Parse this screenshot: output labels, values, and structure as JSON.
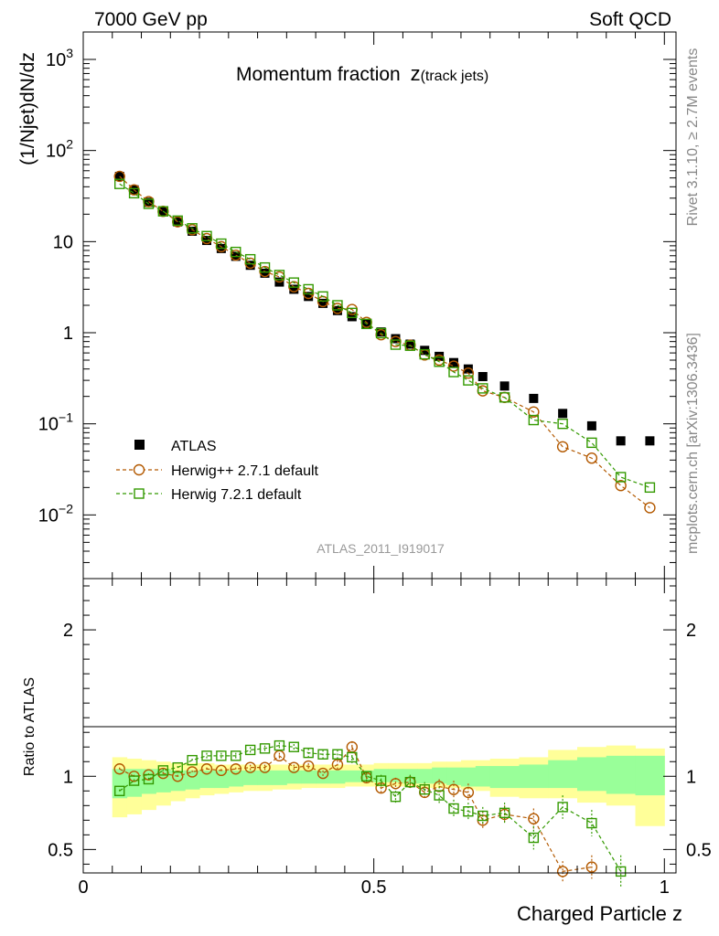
{
  "header": {
    "left": "7000 GeV pp",
    "right": "Soft QCD"
  },
  "side_labels": {
    "rivet": "Rivet 3.1.10, ≥ 2.7M events",
    "source": "mcplots.cern.ch [arXiv:1306.3436]"
  },
  "analysis_tag": "ATLAS_2011_I919017",
  "colors": {
    "atlas": "#000000",
    "herwigpp": "#b35900",
    "herwig7": "#339900",
    "band_inner": "#99ff99",
    "band_outer": "#ffff99"
  },
  "chart_data": [
    {
      "type": "scatter",
      "title_main": "Momentum fraction",
      "title_var": "z",
      "title_sub": "(track jets)",
      "ylabel": "(1/Njet)dN/dz",
      "xlim": [
        0,
        1.02
      ],
      "ylim": [
        0.002,
        2000
      ],
      "yscale": "log",
      "yticks": [
        {
          "value": 1000,
          "base": "10",
          "exp": "3"
        },
        {
          "value": 100,
          "base": "10",
          "exp": "2"
        },
        {
          "value": 10,
          "base": "10",
          "exp": ""
        },
        {
          "value": 1,
          "base": "1",
          "exp": ""
        },
        {
          "value": 0.1,
          "base": "10",
          "exp": "−1"
        },
        {
          "value": 0.01,
          "base": "10",
          "exp": "−2"
        }
      ],
      "legend_position": "bottom-left",
      "x": [
        0.0625,
        0.0875,
        0.1125,
        0.1375,
        0.1625,
        0.1875,
        0.2125,
        0.2375,
        0.2625,
        0.2875,
        0.3125,
        0.3375,
        0.3625,
        0.3875,
        0.4125,
        0.4375,
        0.4625,
        0.4875,
        0.5125,
        0.5375,
        0.5625,
        0.5875,
        0.6125,
        0.6375,
        0.6625,
        0.6875,
        0.725,
        0.775,
        0.825,
        0.875,
        0.925,
        0.975
      ],
      "series": [
        {
          "name": "ATLAS",
          "marker": "square-filled",
          "values": [
            52,
            37,
            27,
            21.5,
            16.5,
            13,
            10.3,
            8.4,
            6.9,
            5.5,
            4.5,
            3.6,
            3.0,
            2.5,
            2.1,
            1.75,
            1.5,
            1.25,
            1.02,
            0.86,
            0.75,
            0.64,
            0.55,
            0.47,
            0.4,
            0.33,
            0.26,
            0.19,
            0.13,
            0.095,
            0.065,
            0.065
          ]
        },
        {
          "name": "Herwig++ 2.7.1 default",
          "marker": "circle-open",
          "values": [
            52,
            37,
            27.5,
            21.5,
            16.5,
            13.5,
            10.8,
            8.8,
            7.1,
            5.8,
            4.7,
            4.1,
            3.2,
            2.7,
            2.2,
            1.85,
            1.8,
            1.3,
            0.95,
            0.8,
            0.73,
            0.57,
            0.5,
            0.43,
            0.36,
            0.23,
            0.195,
            0.135,
            0.056,
            0.042,
            0.021,
            0.012
          ]
        },
        {
          "name": "Herwig 7.2.1 default",
          "marker": "square-open",
          "values": [
            43,
            34,
            26,
            21.5,
            17,
            14,
            11.5,
            9.5,
            7.7,
            6.4,
            5.2,
            4.3,
            3.55,
            3.0,
            2.5,
            2.0,
            1.65,
            1.25,
            0.99,
            0.74,
            0.72,
            0.58,
            0.48,
            0.37,
            0.3,
            0.245,
            0.195,
            0.11,
            0.1,
            0.062,
            0.026,
            0.02
          ]
        }
      ]
    },
    {
      "type": "scatter",
      "ylabel": "Ratio to ATLAS",
      "xlabel": "Charged Particle z",
      "xlim": [
        0,
        1.02
      ],
      "ylim": [
        0.34,
        2.35
      ],
      "xticks": [
        0,
        0.5,
        1
      ],
      "yticks": [
        0.5,
        1,
        2
      ],
      "x_edges": [
        0.05,
        0.075,
        0.1,
        0.125,
        0.15,
        0.175,
        0.2,
        0.225,
        0.25,
        0.275,
        0.3,
        0.325,
        0.35,
        0.375,
        0.4,
        0.425,
        0.45,
        0.475,
        0.5,
        0.525,
        0.55,
        0.575,
        0.6,
        0.625,
        0.65,
        0.675,
        0.7,
        0.75,
        0.8,
        0.85,
        0.9,
        0.95,
        1.0
      ],
      "band_outer_low": [
        0.72,
        0.74,
        0.77,
        0.8,
        0.83,
        0.85,
        0.87,
        0.88,
        0.89,
        0.9,
        0.9,
        0.91,
        0.91,
        0.92,
        0.92,
        0.92,
        0.93,
        0.93,
        0.93,
        0.93,
        0.93,
        0.92,
        0.92,
        0.92,
        0.91,
        0.9,
        0.86,
        0.85,
        0.85,
        0.82,
        0.8,
        0.66
      ],
      "band_outer_high": [
        1.13,
        1.12,
        1.11,
        1.1,
        1.09,
        1.09,
        1.09,
        1.08,
        1.08,
        1.08,
        1.08,
        1.08,
        1.08,
        1.08,
        1.08,
        1.08,
        1.08,
        1.08,
        1.09,
        1.09,
        1.09,
        1.09,
        1.1,
        1.1,
        1.11,
        1.11,
        1.12,
        1.13,
        1.18,
        1.2,
        1.21,
        1.19
      ],
      "band_inner_low": [
        0.85,
        0.86,
        0.88,
        0.89,
        0.9,
        0.91,
        0.92,
        0.92,
        0.93,
        0.94,
        0.94,
        0.94,
        0.95,
        0.95,
        0.95,
        0.95,
        0.96,
        0.96,
        0.96,
        0.96,
        0.95,
        0.95,
        0.95,
        0.94,
        0.93,
        0.93,
        0.92,
        0.92,
        0.92,
        0.9,
        0.88,
        0.87
      ],
      "band_inner_high": [
        1.05,
        1.05,
        1.05,
        1.05,
        1.04,
        1.04,
        1.04,
        1.04,
        1.04,
        1.04,
        1.04,
        1.04,
        1.04,
        1.04,
        1.04,
        1.04,
        1.04,
        1.04,
        1.05,
        1.05,
        1.05,
        1.05,
        1.06,
        1.06,
        1.06,
        1.07,
        1.07,
        1.08,
        1.11,
        1.13,
        1.14,
        1.14
      ],
      "series": [
        {
          "name": "Herwig++ 2.7.1 default",
          "values": [
            1.05,
            1.0,
            1.01,
            1.02,
            1.0,
            1.03,
            1.05,
            1.04,
            1.05,
            1.06,
            1.06,
            1.14,
            1.06,
            1.07,
            1.02,
            1.08,
            1.2,
            0.99,
            0.92,
            0.95,
            0.96,
            0.89,
            0.93,
            0.91,
            0.89,
            0.7,
            0.74,
            0.71,
            0.35,
            0.38,
            null,
            null
          ],
          "err": [
            0.01,
            0.01,
            0.01,
            0.01,
            0.01,
            0.01,
            0.01,
            0.01,
            0.01,
            0.02,
            0.02,
            0.02,
            0.02,
            0.02,
            0.02,
            0.03,
            0.04,
            0.03,
            0.03,
            0.04,
            0.04,
            0.05,
            0.05,
            0.06,
            0.06,
            0.06,
            0.06,
            0.07,
            0.07,
            0.08,
            0.1,
            0.12
          ]
        },
        {
          "name": "Herwig 7.2.1 default",
          "values": [
            0.9,
            0.97,
            0.98,
            1.04,
            1.06,
            1.11,
            1.14,
            1.14,
            1.14,
            1.18,
            1.19,
            1.21,
            1.2,
            1.16,
            1.15,
            1.15,
            1.13,
            1.0,
            0.97,
            0.86,
            0.96,
            0.91,
            0.87,
            0.78,
            0.76,
            0.73,
            0.75,
            0.58,
            0.79,
            0.68,
            0.35,
            null
          ],
          "err": [
            0.01,
            0.01,
            0.01,
            0.01,
            0.01,
            0.01,
            0.02,
            0.02,
            0.02,
            0.02,
            0.02,
            0.02,
            0.02,
            0.03,
            0.03,
            0.03,
            0.04,
            0.03,
            0.04,
            0.04,
            0.05,
            0.05,
            0.06,
            0.06,
            0.06,
            0.06,
            0.07,
            0.08,
            0.08,
            0.09,
            0.11,
            0.13
          ]
        }
      ]
    }
  ]
}
